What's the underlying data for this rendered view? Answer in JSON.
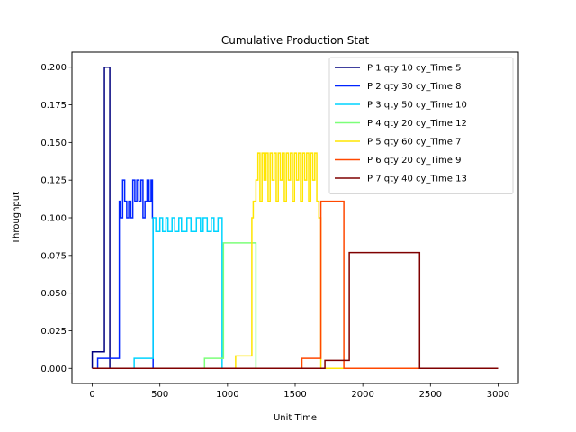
{
  "chart_data": {
    "type": "line",
    "title": "Cumulative Production Stat",
    "xlabel": "Unit Time",
    "ylabel": "Throughput",
    "xlim": [
      -150,
      3150
    ],
    "ylim": [
      -0.01,
      0.21
    ],
    "xticks": [
      0,
      500,
      1000,
      1500,
      2000,
      2500,
      3000
    ],
    "yticks": [
      0.0,
      0.025,
      0.05,
      0.075,
      0.1,
      0.125,
      0.15,
      0.175,
      0.2
    ],
    "xtick_labels": [
      "0",
      "500",
      "1000",
      "1500",
      "2000",
      "2500",
      "3000"
    ],
    "ytick_labels": [
      "0.000",
      "0.025",
      "0.050",
      "0.075",
      "0.100",
      "0.125",
      "0.150",
      "0.175",
      "0.200"
    ],
    "grid": false,
    "legend_position": "top-right",
    "series": [
      {
        "name": "P 1 qty 10 cy_Time 5",
        "color": "#00007f",
        "points": [
          [
            0,
            0
          ],
          [
            0,
            0.0111
          ],
          [
            90,
            0.0111
          ],
          [
            90,
            0.2
          ],
          [
            130,
            0.2
          ],
          [
            130,
            0
          ],
          [
            3000,
            0
          ]
        ]
      },
      {
        "name": "P 2 qty 30 cy_Time 8",
        "color": "#0024ff",
        "points": [
          [
            0,
            0
          ],
          [
            40,
            0
          ],
          [
            40,
            0.0067
          ],
          [
            200,
            0.0067
          ],
          [
            200,
            0.111
          ],
          [
            210,
            0.111
          ],
          [
            210,
            0.1
          ],
          [
            225,
            0.1
          ],
          [
            225,
            0.125
          ],
          [
            240,
            0.125
          ],
          [
            240,
            0.111
          ],
          [
            255,
            0.111
          ],
          [
            255,
            0.1
          ],
          [
            270,
            0.1
          ],
          [
            270,
            0.111
          ],
          [
            285,
            0.111
          ],
          [
            285,
            0.1
          ],
          [
            300,
            0.1
          ],
          [
            300,
            0.125
          ],
          [
            315,
            0.125
          ],
          [
            315,
            0.111
          ],
          [
            330,
            0.111
          ],
          [
            330,
            0.125
          ],
          [
            345,
            0.125
          ],
          [
            345,
            0.111
          ],
          [
            360,
            0.111
          ],
          [
            360,
            0.125
          ],
          [
            375,
            0.125
          ],
          [
            375,
            0.1
          ],
          [
            390,
            0.1
          ],
          [
            390,
            0.111
          ],
          [
            405,
            0.111
          ],
          [
            405,
            0.125
          ],
          [
            420,
            0.125
          ],
          [
            420,
            0.111
          ],
          [
            435,
            0.111
          ],
          [
            435,
            0.125
          ],
          [
            445,
            0.125
          ],
          [
            445,
            0.1
          ],
          [
            450,
            0.1
          ],
          [
            450,
            0
          ],
          [
            3000,
            0
          ]
        ]
      },
      {
        "name": "P 3 qty 50 cy_Time 10",
        "color": "#00d4ff",
        "points": [
          [
            0,
            0
          ],
          [
            310,
            0
          ],
          [
            310,
            0.0067
          ],
          [
            450,
            0.0067
          ],
          [
            450,
            0.1
          ],
          [
            470,
            0.1
          ],
          [
            470,
            0.0909
          ],
          [
            500,
            0.0909
          ],
          [
            500,
            0.1
          ],
          [
            520,
            0.1
          ],
          [
            520,
            0.0909
          ],
          [
            545,
            0.0909
          ],
          [
            545,
            0.1
          ],
          [
            560,
            0.1
          ],
          [
            560,
            0.0909
          ],
          [
            590,
            0.0909
          ],
          [
            590,
            0.1
          ],
          [
            610,
            0.1
          ],
          [
            610,
            0.0909
          ],
          [
            640,
            0.0909
          ],
          [
            640,
            0.1
          ],
          [
            660,
            0.1
          ],
          [
            660,
            0.0909
          ],
          [
            700,
            0.0909
          ],
          [
            700,
            0.1
          ],
          [
            730,
            0.1
          ],
          [
            730,
            0.0909
          ],
          [
            770,
            0.0909
          ],
          [
            770,
            0.1
          ],
          [
            800,
            0.1
          ],
          [
            800,
            0.0909
          ],
          [
            820,
            0.0909
          ],
          [
            820,
            0.1
          ],
          [
            850,
            0.1
          ],
          [
            850,
            0.0909
          ],
          [
            880,
            0.0909
          ],
          [
            880,
            0.1
          ],
          [
            900,
            0.1
          ],
          [
            900,
            0.0909
          ],
          [
            930,
            0.0909
          ],
          [
            930,
            0.1
          ],
          [
            960,
            0.1
          ],
          [
            960,
            0
          ],
          [
            3000,
            0
          ]
        ]
      },
      {
        "name": "P 4 qty 20 cy_Time 12",
        "color": "#7cff79",
        "points": [
          [
            0,
            0
          ],
          [
            830,
            0
          ],
          [
            830,
            0.0067
          ],
          [
            970,
            0.0067
          ],
          [
            970,
            0.0833
          ],
          [
            1210,
            0.0833
          ],
          [
            1210,
            0
          ],
          [
            3000,
            0
          ]
        ]
      },
      {
        "name": "P 5 qty 60 cy_Time 7",
        "color": "#ffe500",
        "points": [
          [
            0,
            0
          ],
          [
            1060,
            0
          ],
          [
            1060,
            0.0083
          ],
          [
            1180,
            0.0083
          ],
          [
            1180,
            0.1
          ],
          [
            1190,
            0.1
          ],
          [
            1190,
            0.111
          ],
          [
            1210,
            0.111
          ],
          [
            1210,
            0.125
          ],
          [
            1225,
            0.125
          ],
          [
            1225,
            0.143
          ],
          [
            1240,
            0.143
          ],
          [
            1240,
            0.111
          ],
          [
            1255,
            0.111
          ],
          [
            1255,
            0.143
          ],
          [
            1270,
            0.143
          ],
          [
            1270,
            0.125
          ],
          [
            1285,
            0.125
          ],
          [
            1285,
            0.143
          ],
          [
            1300,
            0.143
          ],
          [
            1300,
            0.111
          ],
          [
            1315,
            0.111
          ],
          [
            1315,
            0.143
          ],
          [
            1330,
            0.143
          ],
          [
            1330,
            0.125
          ],
          [
            1345,
            0.125
          ],
          [
            1345,
            0.143
          ],
          [
            1360,
            0.143
          ],
          [
            1360,
            0.111
          ],
          [
            1375,
            0.111
          ],
          [
            1375,
            0.143
          ],
          [
            1390,
            0.143
          ],
          [
            1390,
            0.125
          ],
          [
            1405,
            0.125
          ],
          [
            1405,
            0.143
          ],
          [
            1420,
            0.143
          ],
          [
            1420,
            0.111
          ],
          [
            1435,
            0.111
          ],
          [
            1435,
            0.143
          ],
          [
            1450,
            0.143
          ],
          [
            1450,
            0.125
          ],
          [
            1465,
            0.125
          ],
          [
            1465,
            0.143
          ],
          [
            1480,
            0.143
          ],
          [
            1480,
            0.111
          ],
          [
            1495,
            0.111
          ],
          [
            1495,
            0.143
          ],
          [
            1510,
            0.143
          ],
          [
            1510,
            0.125
          ],
          [
            1525,
            0.125
          ],
          [
            1525,
            0.143
          ],
          [
            1540,
            0.143
          ],
          [
            1540,
            0.111
          ],
          [
            1555,
            0.111
          ],
          [
            1555,
            0.143
          ],
          [
            1570,
            0.143
          ],
          [
            1570,
            0.125
          ],
          [
            1585,
            0.125
          ],
          [
            1585,
            0.143
          ],
          [
            1600,
            0.143
          ],
          [
            1600,
            0.111
          ],
          [
            1615,
            0.111
          ],
          [
            1615,
            0.143
          ],
          [
            1630,
            0.143
          ],
          [
            1630,
            0.125
          ],
          [
            1645,
            0.125
          ],
          [
            1645,
            0.143
          ],
          [
            1660,
            0.143
          ],
          [
            1660,
            0.111
          ],
          [
            1675,
            0.111
          ],
          [
            1675,
            0.1
          ],
          [
            1690,
            0.1
          ],
          [
            1690,
            0
          ],
          [
            3000,
            0
          ]
        ]
      },
      {
        "name": "P 6 qty 20 cy_Time 9",
        "color": "#ff4800",
        "points": [
          [
            0,
            0
          ],
          [
            1550,
            0
          ],
          [
            1550,
            0.0067
          ],
          [
            1690,
            0.0067
          ],
          [
            1690,
            0.111
          ],
          [
            1860,
            0.111
          ],
          [
            1860,
            0
          ],
          [
            3000,
            0
          ]
        ]
      },
      {
        "name": "P 7 qty 40 cy_Time 13",
        "color": "#7f0000",
        "points": [
          [
            0,
            0
          ],
          [
            1720,
            0
          ],
          [
            1720,
            0.0053
          ],
          [
            1900,
            0.0053
          ],
          [
            1900,
            0.0769
          ],
          [
            2420,
            0.0769
          ],
          [
            2420,
            0
          ],
          [
            3000,
            0
          ]
        ]
      }
    ]
  }
}
